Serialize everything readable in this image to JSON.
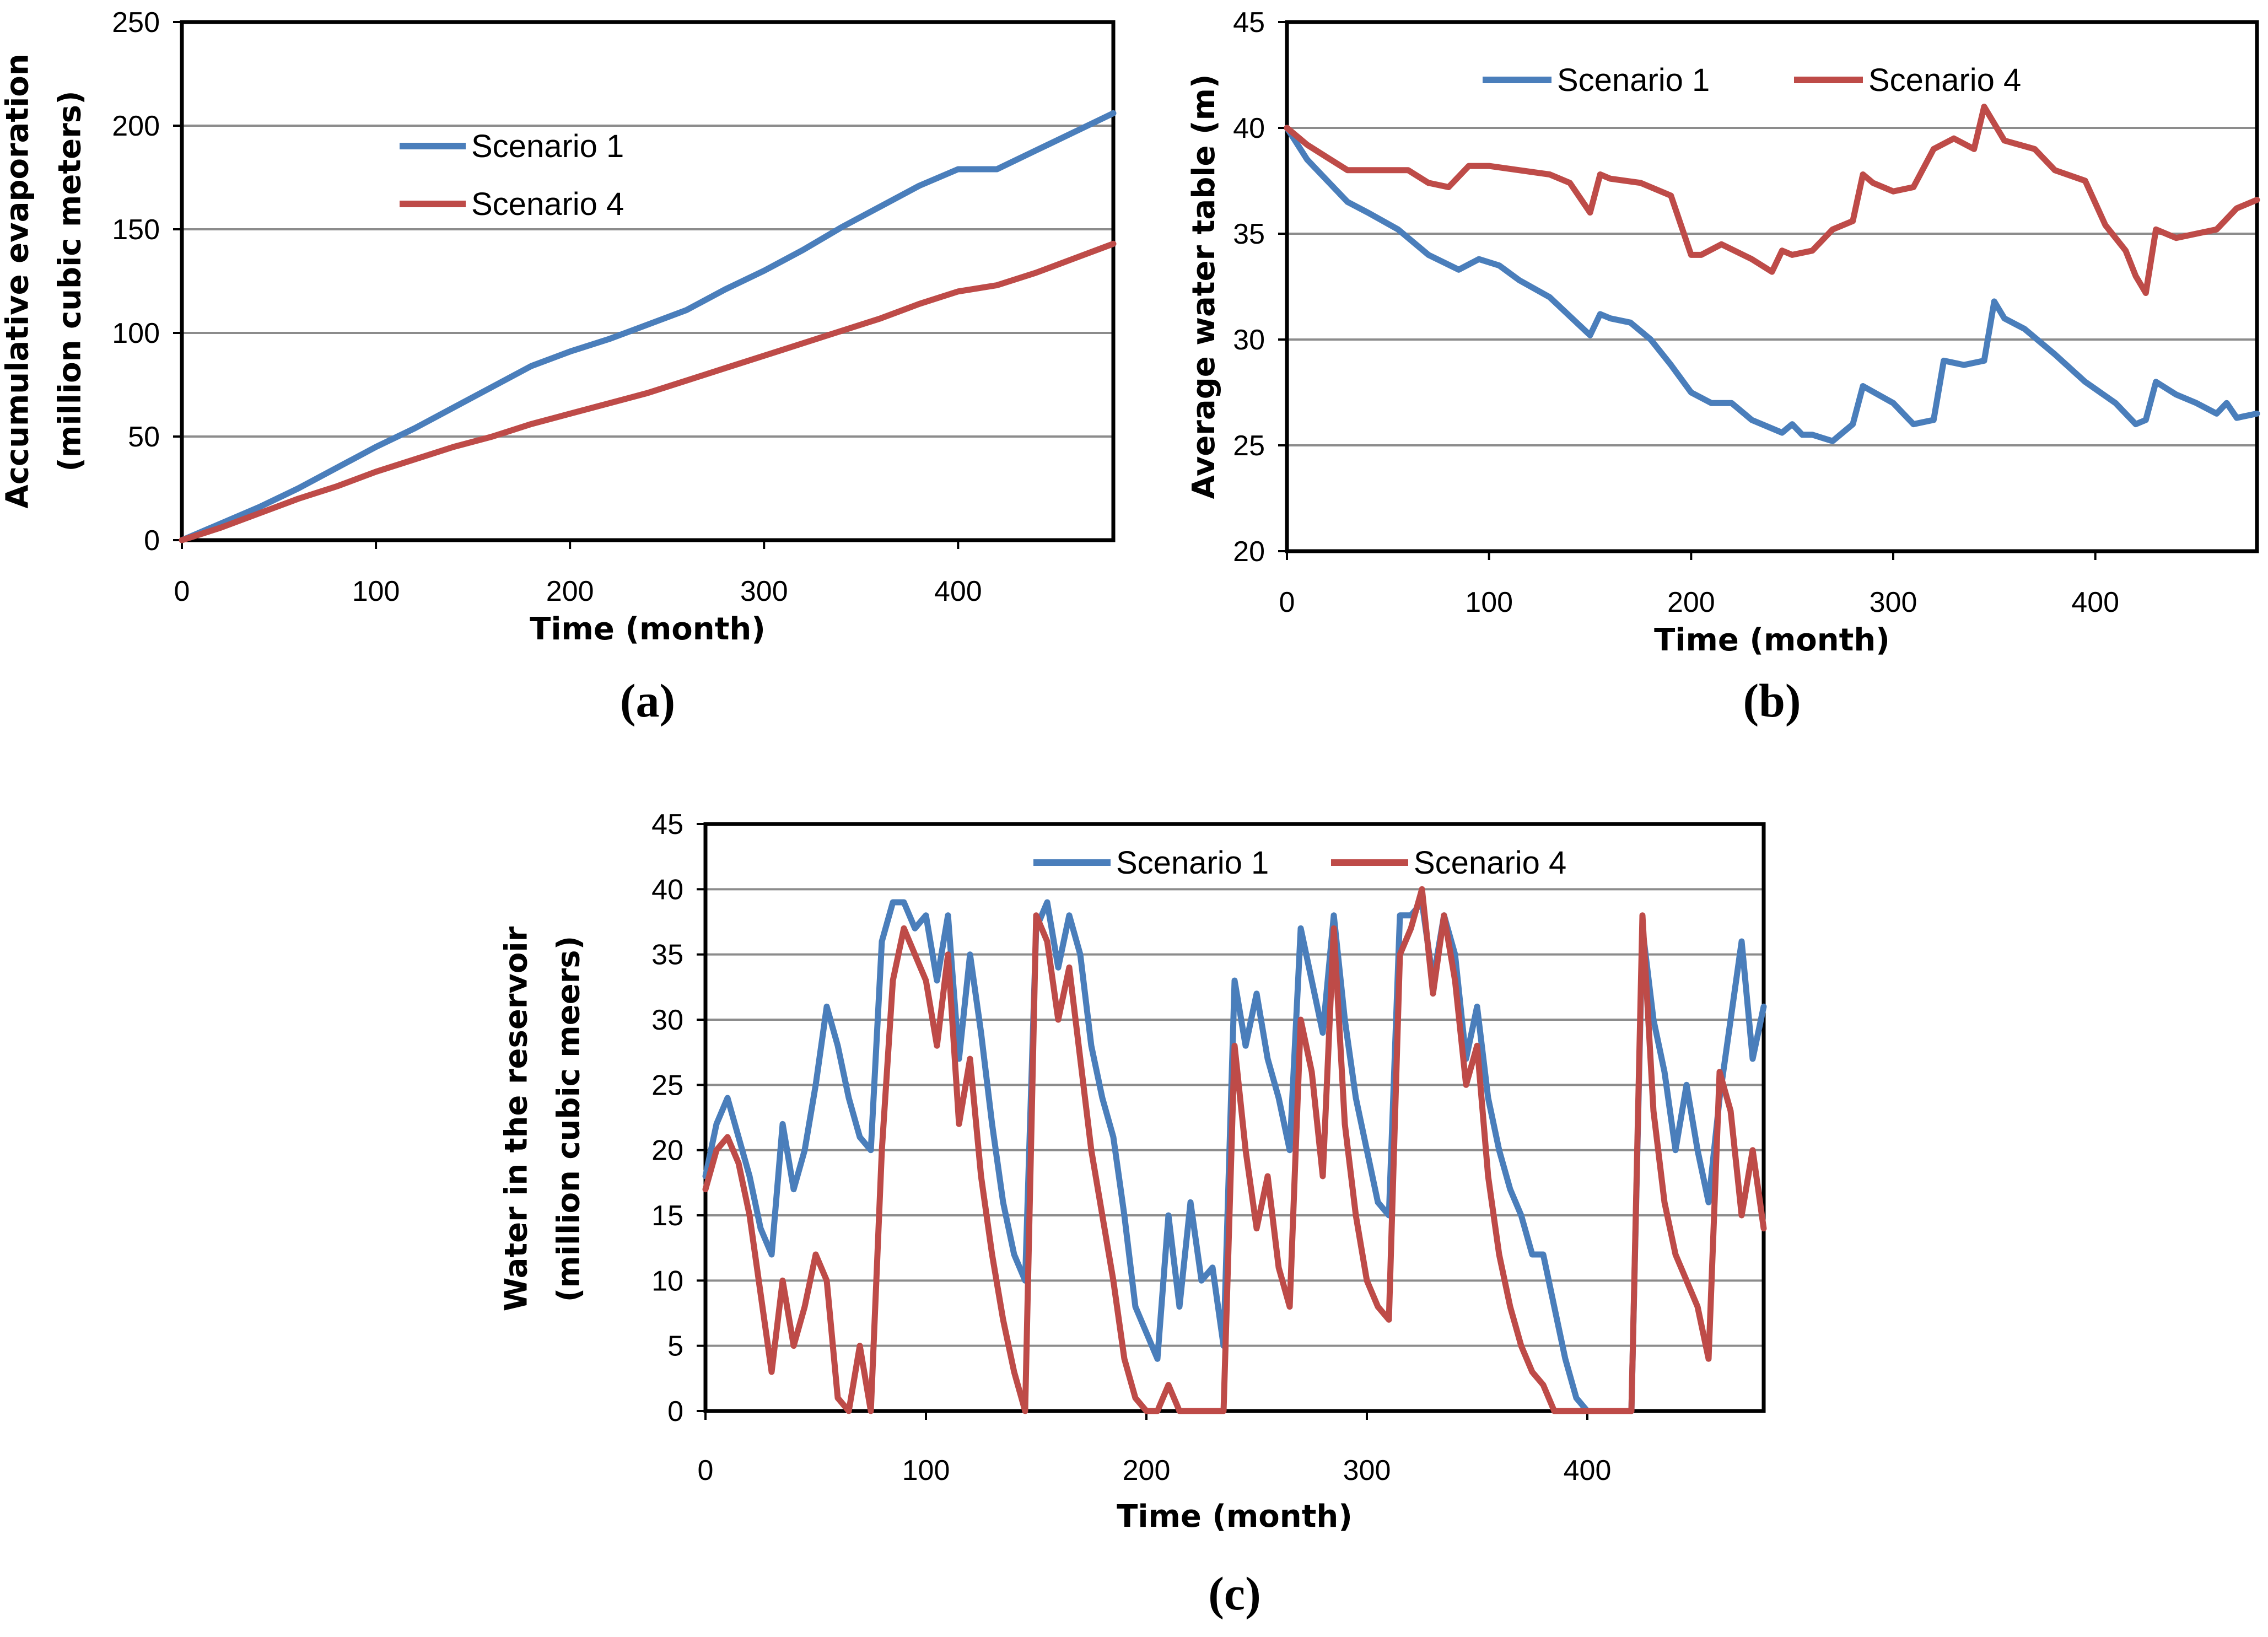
{
  "colors": {
    "scenario1": "#4a7ebb",
    "scenario4": "#be4b48",
    "grid": "#8c8c8c",
    "frame": "#000000"
  },
  "chart_data": [
    {
      "type": "line",
      "panel_label": "(a)",
      "xlabel": "Time (month)",
      "ylabel_lines": [
        "Accumulative evaporation",
        "(million cubic meters)"
      ],
      "xlim": [
        0,
        480
      ],
      "ylim": [
        0,
        250
      ],
      "xticks": [
        0,
        100,
        200,
        300,
        400
      ],
      "yticks": [
        0,
        50,
        100,
        150,
        200,
        250
      ],
      "legend": "inside-upper-left",
      "series": [
        {
          "name": "Scenario 1",
          "x": [
            0,
            20,
            40,
            60,
            80,
            100,
            120,
            140,
            160,
            180,
            200,
            220,
            240,
            260,
            280,
            300,
            320,
            340,
            360,
            380,
            400,
            420,
            440,
            460,
            480
          ],
          "y": [
            0,
            8,
            16,
            25,
            35,
            45,
            54,
            64,
            74,
            84,
            91,
            97,
            104,
            111,
            121,
            130,
            140,
            151,
            161,
            171,
            179,
            179,
            188,
            197,
            206
          ]
        },
        {
          "name": "Scenario 4",
          "x": [
            0,
            20,
            40,
            60,
            80,
            100,
            120,
            140,
            160,
            180,
            200,
            220,
            240,
            260,
            280,
            300,
            320,
            340,
            360,
            380,
            400,
            420,
            440,
            460,
            480
          ],
          "y": [
            0,
            6,
            13,
            20,
            26,
            33,
            39,
            45,
            50,
            56,
            61,
            66,
            71,
            77,
            83,
            89,
            95,
            101,
            107,
            114,
            120,
            123,
            129,
            136,
            143
          ]
        }
      ]
    },
    {
      "type": "line",
      "panel_label": "(b)",
      "xlabel": "Time (month)",
      "ylabel_lines": [
        "Average water table (m)"
      ],
      "xlim": [
        0,
        480
      ],
      "ylim": [
        20,
        45
      ],
      "xticks": [
        0,
        100,
        200,
        300,
        400
      ],
      "yticks": [
        20,
        25,
        30,
        35,
        40,
        45
      ],
      "legend": "top",
      "series": [
        {
          "name": "Scenario 1",
          "x": [
            0,
            10,
            20,
            30,
            40,
            55,
            70,
            85,
            95,
            105,
            115,
            130,
            150,
            155,
            160,
            170,
            180,
            190,
            200,
            210,
            220,
            230,
            245,
            250,
            255,
            260,
            270,
            275,
            280,
            285,
            300,
            310,
            320,
            325,
            335,
            345,
            350,
            355,
            365,
            380,
            395,
            410,
            420,
            425,
            430,
            440,
            450,
            460,
            465,
            470,
            480
          ],
          "y": [
            40,
            38.5,
            37.5,
            36.5,
            36,
            35.2,
            34,
            33.3,
            33.8,
            33.5,
            32.8,
            32,
            30.2,
            31.2,
            31,
            30.8,
            30,
            28.8,
            27.5,
            27,
            27,
            26.2,
            25.6,
            26,
            25.5,
            25.5,
            25.2,
            25.6,
            26,
            27.8,
            27,
            26,
            26.2,
            29,
            28.8,
            29,
            31.8,
            31,
            30.5,
            29.3,
            28,
            27,
            26,
            26.2,
            28,
            27.4,
            27,
            26.5,
            27,
            26.3,
            26.5
          ]
        },
        {
          "name": "Scenario 4",
          "x": [
            0,
            10,
            20,
            30,
            40,
            60,
            70,
            80,
            90,
            100,
            115,
            130,
            140,
            150,
            155,
            160,
            175,
            190,
            200,
            205,
            215,
            230,
            240,
            245,
            250,
            260,
            270,
            280,
            285,
            290,
            300,
            310,
            320,
            330,
            340,
            345,
            355,
            370,
            380,
            395,
            405,
            415,
            420,
            425,
            430,
            440,
            450,
            460,
            470,
            480
          ],
          "y": [
            40,
            39.2,
            38.6,
            38,
            38,
            38,
            37.4,
            37.2,
            38.2,
            38.2,
            38,
            37.8,
            37.4,
            36,
            37.8,
            37.6,
            37.4,
            36.8,
            34,
            34,
            34.5,
            33.8,
            33.2,
            34.2,
            34,
            34.2,
            35.2,
            35.6,
            37.8,
            37.4,
            37,
            37.2,
            39,
            39.5,
            39,
            41,
            39.4,
            39,
            38,
            37.5,
            35.4,
            34.2,
            33,
            32.2,
            35.2,
            34.8,
            35,
            35.2,
            36.2,
            36.6
          ]
        }
      ]
    },
    {
      "type": "line",
      "panel_label": "(c)",
      "xlabel": "Time (month)",
      "ylabel_lines": [
        "Water in the reservoir",
        "(million cubic meers)"
      ],
      "xlim": [
        0,
        480
      ],
      "ylim": [
        0,
        45
      ],
      "xticks": [
        0,
        100,
        200,
        300,
        400
      ],
      "yticks": [
        0,
        5,
        10,
        15,
        20,
        25,
        30,
        35,
        40,
        45
      ],
      "legend": "top",
      "series": [
        {
          "name": "Scenario 1",
          "x": [
            0,
            5,
            10,
            15,
            20,
            25,
            30,
            35,
            40,
            45,
            50,
            55,
            60,
            65,
            70,
            75,
            80,
            85,
            90,
            95,
            100,
            105,
            110,
            115,
            120,
            125,
            130,
            135,
            140,
            145,
            150,
            155,
            160,
            165,
            170,
            175,
            180,
            185,
            190,
            195,
            200,
            205,
            210,
            215,
            220,
            225,
            230,
            235,
            240,
            245,
            250,
            255,
            260,
            265,
            270,
            275,
            280,
            285,
            290,
            295,
            300,
            305,
            310,
            315,
            320,
            325,
            330,
            335,
            340,
            345,
            350,
            355,
            360,
            365,
            370,
            375,
            380,
            385,
            390,
            395,
            400,
            405,
            410,
            415,
            420,
            425,
            430,
            435,
            440,
            445,
            450,
            455,
            460,
            465,
            470,
            475,
            480
          ],
          "y": [
            18,
            22,
            24,
            21,
            18,
            14,
            12,
            22,
            17,
            20,
            25,
            31,
            28,
            24,
            21,
            20,
            36,
            39,
            39,
            37,
            38,
            33,
            38,
            27,
            35,
            29,
            22,
            16,
            12,
            10,
            37,
            39,
            34,
            38,
            35,
            28,
            24,
            21,
            15,
            8,
            6,
            4,
            15,
            8,
            16,
            10,
            11,
            5,
            33,
            28,
            32,
            27,
            24,
            20,
            37,
            33,
            29,
            38,
            30,
            24,
            20,
            16,
            15,
            38,
            38,
            39,
            33,
            38,
            35,
            27,
            31,
            24,
            20,
            17,
            15,
            12,
            12,
            8,
            4,
            1,
            0,
            0,
            0,
            0,
            0,
            37,
            30,
            26,
            20,
            25,
            20,
            16,
            24,
            30,
            36,
            27,
            31
          ]
        },
        {
          "name": "Scenario 4",
          "x": [
            0,
            5,
            10,
            15,
            20,
            25,
            30,
            35,
            40,
            45,
            50,
            55,
            60,
            65,
            70,
            75,
            80,
            85,
            90,
            95,
            100,
            105,
            110,
            115,
            120,
            125,
            130,
            135,
            140,
            145,
            150,
            155,
            160,
            165,
            170,
            175,
            180,
            185,
            190,
            195,
            200,
            205,
            210,
            215,
            220,
            225,
            230,
            235,
            240,
            245,
            250,
            255,
            260,
            265,
            270,
            275,
            280,
            285,
            290,
            295,
            300,
            305,
            310,
            315,
            320,
            325,
            330,
            335,
            340,
            345,
            350,
            355,
            360,
            365,
            370,
            375,
            380,
            385,
            390,
            395,
            400,
            405,
            410,
            415,
            420,
            425,
            430,
            435,
            440,
            445,
            450,
            455,
            460,
            465,
            470,
            475,
            480
          ],
          "y": [
            17,
            20,
            21,
            19,
            15,
            9,
            3,
            10,
            5,
            8,
            12,
            10,
            1,
            0,
            5,
            0,
            20,
            33,
            37,
            35,
            33,
            28,
            35,
            22,
            27,
            18,
            12,
            7,
            3,
            0,
            38,
            36,
            30,
            34,
            27,
            20,
            15,
            10,
            4,
            1,
            0,
            0,
            2,
            0,
            0,
            0,
            0,
            0,
            28,
            20,
            14,
            18,
            11,
            8,
            30,
            26,
            18,
            37,
            22,
            15,
            10,
            8,
            7,
            35,
            37,
            40,
            32,
            38,
            33,
            25,
            28,
            18,
            12,
            8,
            5,
            3,
            2,
            0,
            0,
            0,
            0,
            0,
            0,
            0,
            0,
            38,
            23,
            16,
            12,
            10,
            8,
            4,
            26,
            23,
            15,
            20,
            14
          ]
        }
      ]
    }
  ]
}
